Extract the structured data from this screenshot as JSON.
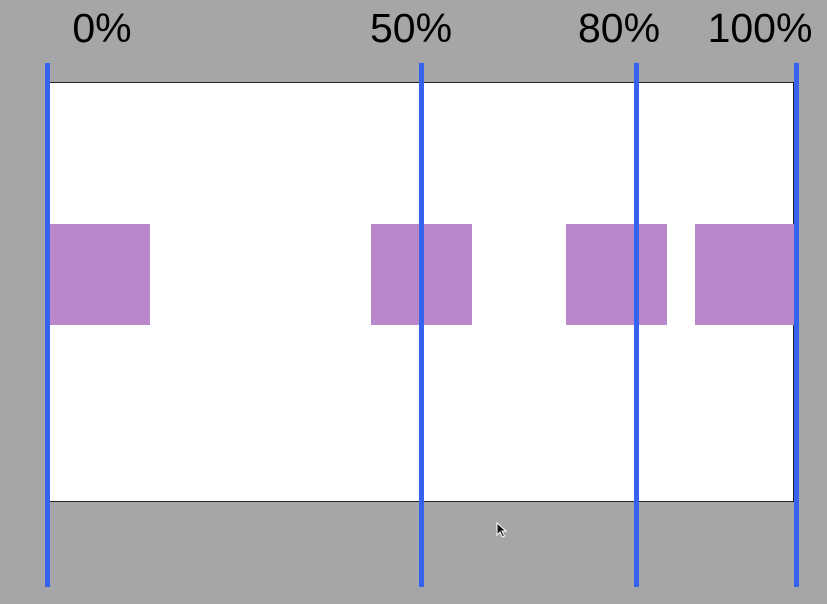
{
  "markers": [
    {
      "label": "0%",
      "percent": 0
    },
    {
      "label": "50%",
      "percent": 50
    },
    {
      "label": "80%",
      "percent": 80
    },
    {
      "label": "100%",
      "percent": 100
    }
  ],
  "boxes": [
    {
      "name": "box-0-percent"
    },
    {
      "name": "box-50-percent"
    },
    {
      "name": "box-80-percent"
    },
    {
      "name": "box-100-percent"
    }
  ],
  "colors": {
    "background": "#a6a6a8",
    "canvas": "#ffffff",
    "line": "#3563f0",
    "box": "#b888ca",
    "text": "#000000"
  },
  "icons": {
    "cursor": "mouse-pointer-icon"
  }
}
